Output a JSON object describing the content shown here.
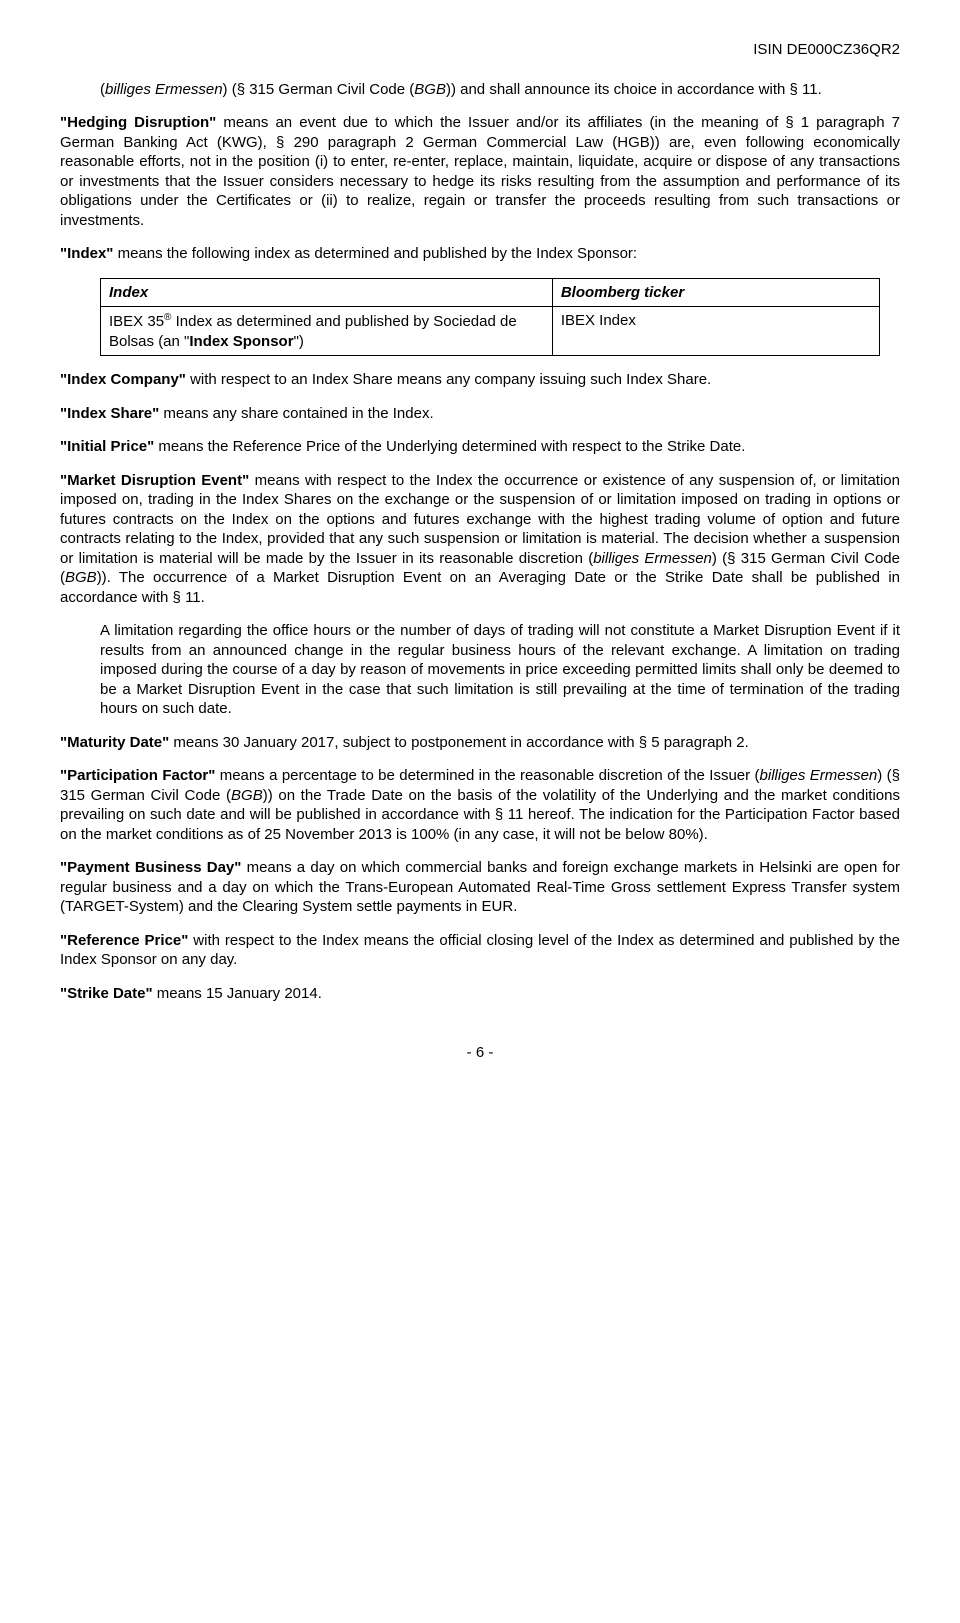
{
  "header": {
    "isin": "ISIN DE000CZ36QR2"
  },
  "p1": {
    "pre": "(",
    "italic1": "billiges Ermessen",
    "mid": ") (§ 315 German Civil Code (",
    "italic2": "BGB",
    "post": ")) and shall announce its choice in accordance with § 11."
  },
  "p2": {
    "bold": "\"Hedging Disruption\"",
    "text": " means an event due to which the Issuer and/or its affiliates (in the meaning of § 1 paragraph 7 German Banking Act (KWG), § 290 paragraph 2 German Commercial Law (HGB)) are, even following economically reasonable efforts, not in the position (i) to enter, re-enter, replace, maintain, liquidate, acquire or dispose of any transactions or investments that the Issuer considers necessary to hedge its risks resulting from the assumption and performance of its obligations under the Certificates or (ii) to realize, regain or transfer the proceeds resulting from such transactions or investments."
  },
  "p3": {
    "bold": "\"Index\"",
    "text": " means the following index as determined and published by the Index Sponsor:"
  },
  "table": {
    "h1": "Index",
    "h2": "Bloomberg ticker",
    "c1a": "IBEX 35",
    "c1b": " Index as determined and published by Sociedad de Bolsas (an \"",
    "c1bold": "Index Sponsor",
    "c1c": "\")",
    "c2": "IBEX Index"
  },
  "p4": {
    "bold": "\"Index Company\"",
    "text": " with respect to an Index Share means any company issuing such Index Share."
  },
  "p5": {
    "bold": "\"Index Share\"",
    "text": " means any share contained in the Index."
  },
  "p6": {
    "bold": "\"Initial Price\"",
    "text": " means the Reference Price of the Underlying determined with respect to the Strike Date."
  },
  "p7": {
    "bold": "\"Market Disruption Event\"",
    "text1": " means with respect to the Index the occurrence or existence of any suspension of, or limitation imposed on, trading in the Index Shares on the exchange or the suspension of or limitation imposed on trading in options or futures contracts on the Index on the options and futures exchange with the highest trading volume of option and future contracts relating to the Index, provided that any such suspension or limitation is material.  The decision whether a suspension or limitation is material will be made by the Issuer in its reasonable discretion (",
    "italic1": "billiges Ermessen",
    "text2": ") (§ 315 German Civil Code (",
    "italic2": "BGB",
    "text3": ")).  The occurrence of a Market Disruption Event on an Averaging Date or the Strike Date shall be published in accordance with § 11."
  },
  "p8": {
    "text": "A limitation regarding the office hours or the number of days of trading will not constitute a Market Disruption Event if it results from an announced change in the regular business hours of the relevant exchange.  A limitation on trading imposed during the course of a day by reason of movements in price exceeding permitted limits shall only be deemed to be a Market Disruption Event in the case that such limitation is still prevailing at the time of termination of the trading hours on such date."
  },
  "p9": {
    "bold": "\"Maturity Date\"",
    "text": " means 30 January 2017, subject to postponement in accordance with § 5 paragraph 2."
  },
  "p10": {
    "bold": "\"Participation Factor\"",
    "text1": " means a percentage to be determined in the reasonable discretion of the Issuer (",
    "italic1": "billiges Ermessen",
    "text2": ") (§ 315 German Civil Code (",
    "italic2": "BGB",
    "text3": ")) on the Trade Date on the basis of the volatility of the Underlying and the market conditions prevailing on such date and will be published in accordance with § 11 hereof.  The indication for the Participation Factor based on the market conditions as of 25 November 2013 is 100% (in any case, it will not be below 80%)."
  },
  "p11": {
    "bold": "\"Payment Business Day\"",
    "text": " means a day on which commercial banks and foreign exchange markets in Helsinki are open for regular business and a day on which the Trans-European Automated Real-Time Gross settlement Express Transfer system (TARGET-System) and the Clearing System settle payments in EUR."
  },
  "p12": {
    "bold": "\"Reference Price\"",
    "text": " with respect to the Index means the official closing level of the Index as determined and published by the Index Sponsor on any day."
  },
  "p13": {
    "bold": "\"Strike Date\"",
    "text": " means 15 January 2014."
  },
  "footer": {
    "page": "- 6 -"
  }
}
